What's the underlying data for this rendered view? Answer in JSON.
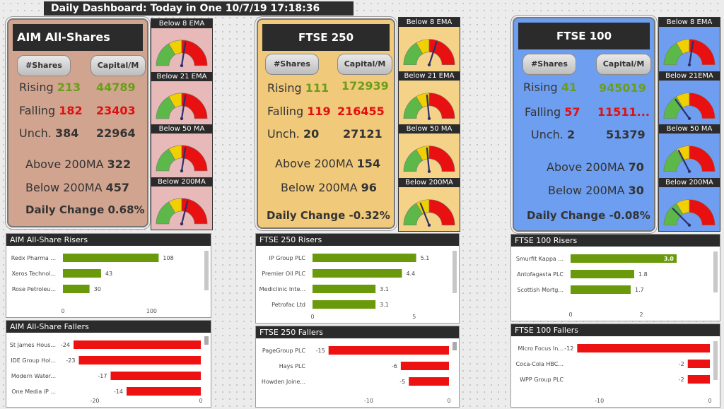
{
  "header": {
    "title": "Daily Dashboard: Today in One 10/7/19 17:18:36"
  },
  "colors": {
    "risers": "#6a9a0c",
    "fallers": "#ee1111",
    "gauge_needle": "#2b2f6a"
  },
  "markets": [
    {
      "id": "aim",
      "name": "AIM All-Shares",
      "card_color": "#d1a48f",
      "shares_label": "#Shares",
      "capital_label": "Capital/M",
      "rising_label": "Rising",
      "rising_count": "213",
      "rising_capital": "44789",
      "falling_label": "Falling",
      "falling_count": "182",
      "falling_capital": "23403",
      "unch_label": "Unch.",
      "unch_count": "384",
      "unch_capital": "22964",
      "above_label": "Above 200MA",
      "above_value": "322",
      "below_label": "Below 200MA",
      "below_value": "457",
      "change_label": "Daily Change",
      "change_value": "0.68%",
      "gauge_bg": "#e8b9b9",
      "gauges": [
        {
          "label": "Below 8 EMA",
          "value": 0.55
        },
        {
          "label": "Below 21 EMA",
          "value": 0.55
        },
        {
          "label": "Below 50 MA",
          "value": 0.55
        },
        {
          "label": "Below 200MA",
          "value": 0.58
        }
      ]
    },
    {
      "id": "ftse250",
      "name": "FTSE 250",
      "card_color": "#f1c97a",
      "shares_label": "#Shares",
      "capital_label": "Capital/M",
      "rising_label": "Rising",
      "rising_count": "111",
      "rising_capital": "172939",
      "falling_label": "Falling",
      "falling_count": "119",
      "falling_capital": "216455",
      "unch_label": "Unch.",
      "unch_count": "20",
      "unch_capital": "27121",
      "above_label": "Above 200MA",
      "above_value": "154",
      "below_label": "Below 200MA",
      "below_value": "96",
      "change_label": "Daily Change",
      "change_value": "-0.32%",
      "gauge_bg": "#f4d389",
      "gauges": [
        {
          "label": "Below 8 EMA",
          "value": 0.6
        },
        {
          "label": "Below 21 EMA",
          "value": 0.47
        },
        {
          "label": "Below 50 MA",
          "value": 0.47
        },
        {
          "label": "Below 200MA",
          "value": 0.38
        }
      ]
    },
    {
      "id": "ftse100",
      "name": "FTSE 100",
      "card_color": "#6e9ef0",
      "shares_label": "#Shares",
      "capital_label": "Capital/M",
      "rising_label": "Rising",
      "rising_count": "41",
      "rising_capital": "945019",
      "falling_label": "Falling",
      "falling_count": "57",
      "falling_capital": "11511...",
      "unch_label": "Unch.",
      "unch_count": "2",
      "unch_capital": "51379",
      "above_label": "Above 200MA",
      "above_value": "70",
      "below_label": "Below 200MA",
      "below_value": "30",
      "change_label": "Daily Change",
      "change_value": "-0.08%",
      "gauge_bg": "#6f9ef0",
      "gauges": [
        {
          "label": "Below 8 EMA",
          "value": 0.55
        },
        {
          "label": "Below 21EMA",
          "value": 0.3
        },
        {
          "label": "Below 50 MA",
          "value": 0.35
        },
        {
          "label": "Below 200MA",
          "value": 0.25
        }
      ]
    }
  ],
  "chart_data": [
    {
      "type": "bar",
      "orientation": "horizontal",
      "title": "AIM All-Share Risers",
      "categories": [
        "Redx Pharma ...",
        "Xeros Technol...",
        "Rose Petroleu..."
      ],
      "values": [
        108,
        43,
        30
      ],
      "value_labels": [
        "108",
        "43",
        "30"
      ],
      "xlim": [
        0,
        130
      ],
      "ticks": [
        0,
        100
      ],
      "tick_labels": [
        "0",
        "100"
      ]
    },
    {
      "type": "bar",
      "orientation": "horizontal",
      "title": "AIM All-Share Fallers",
      "categories": [
        "St James Hous...",
        "IDE Group Hol...",
        "Modern Water...",
        "One Media iP ..."
      ],
      "values": [
        -24,
        -23,
        -17,
        -14
      ],
      "value_labels": [
        "-24",
        "-23",
        "-17",
        "-14"
      ],
      "xlim": [
        -26,
        0
      ],
      "ticks": [
        -20,
        0
      ],
      "tick_labels": [
        "-20",
        "0"
      ]
    },
    {
      "type": "bar",
      "orientation": "horizontal",
      "title": "FTSE 250 Risers",
      "categories": [
        "IP Group PLC",
        "Premier Oil PLC",
        "Mediclinic Inte...",
        "Petrofac Ltd"
      ],
      "values": [
        5.1,
        4.4,
        3.1,
        3.1
      ],
      "value_labels": [
        "5.1",
        "4.4",
        "3.1",
        "3.1"
      ],
      "xlim": [
        0,
        5.6
      ],
      "ticks": [
        0,
        5
      ],
      "tick_labels": [
        "0",
        "5"
      ]
    },
    {
      "type": "bar",
      "orientation": "horizontal",
      "title": "FTSE 250 Fallers",
      "categories": [
        "PageGroup PLC",
        "Hays PLC",
        "Howden Joine..."
      ],
      "values": [
        -15,
        -6,
        -5
      ],
      "value_labels": [
        "-15",
        "-6",
        "-5"
      ],
      "xlim": [
        -17,
        0
      ],
      "ticks": [
        -10,
        0
      ],
      "tick_labels": [
        "-10",
        "0"
      ]
    },
    {
      "type": "bar",
      "orientation": "horizontal",
      "title": "FTSE 100 Risers",
      "categories": [
        "Smurfit Kappa ...",
        "Antofagasta PLC",
        "Scottish Mortg..."
      ],
      "values": [
        3.0,
        1.8,
        1.7
      ],
      "value_labels": [
        "3.0",
        "1.8",
        "1.7"
      ],
      "xlim": [
        0,
        3.3
      ],
      "ticks": [
        0,
        2
      ],
      "tick_labels": [
        "0",
        "2"
      ]
    },
    {
      "type": "bar",
      "orientation": "horizontal",
      "title": "FTSE 100 Fallers",
      "categories": [
        "Micro Focus In...",
        "Coca-Cola HBC...",
        "WPP Group PLC"
      ],
      "values": [
        -12,
        -2,
        -2
      ],
      "value_labels": [
        "-12",
        "-2",
        "-2"
      ],
      "xlim": [
        -12.6,
        0
      ],
      "ticks": [
        -10,
        0
      ],
      "tick_labels": [
        "-10",
        "0"
      ]
    }
  ]
}
